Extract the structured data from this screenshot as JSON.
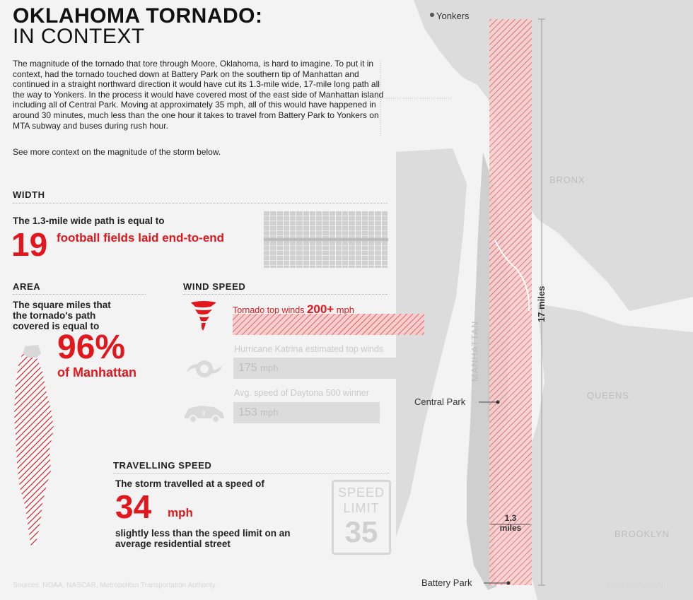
{
  "header": {
    "title_line1": "OKLAHOMA TORNADO:",
    "title_line2": "IN CONTEXT"
  },
  "intro": {
    "paragraph": "The magnitude of the tornado that tore through Moore, Oklahoma, is hard to imagine. To put it in context, had the tornado touched down at Battery Park on the southern tip of Manhattan and continued in a straight northward direction it would have cut its 1.3-mile wide, 17-mile long path all the way to Yonkers. In the process it would have covered most of the east side of Manhattan island including all of Central Park. Moving at approximately 35 mph, all of this would have happened in around 30 minutes, much less than the one hour it takes to travel from Battery Park to Yonkers on MTA subway and buses during rush hour.",
    "see_more": "See more context on the magnitude of the storm below."
  },
  "width_section": {
    "heading": "WIDTH",
    "text": "The 1.3-mile wide path is equal to",
    "number": "19",
    "unit_text": "football fields laid end-to-end",
    "field_count": 19
  },
  "area_section": {
    "heading": "AREA",
    "text_line1": "The square miles that",
    "text_line2": "the tornado's path",
    "text_line3": "covered is equal to",
    "percent": "96%",
    "of_text": "of Manhattan"
  },
  "wind_section": {
    "heading": "WIND SPEED",
    "items": [
      {
        "label": "Tornado top winds",
        "value": "200+",
        "unit": "mph",
        "speed": 200,
        "icon": "tornado-icon",
        "highlight": true
      },
      {
        "label": "Hurricane Katrina estimated top winds",
        "value": "175",
        "unit": "mph",
        "speed": 175,
        "icon": "hurricane-icon",
        "highlight": false
      },
      {
        "label": "Avg. speed of Daytona 500 winner",
        "value": "153",
        "unit": "mph",
        "speed": 153,
        "icon": "race-car-icon",
        "highlight": false
      }
    ]
  },
  "travel_section": {
    "heading": "TRAVELLING SPEED",
    "text": "The storm travelled at a speed of",
    "number": "34",
    "unit": "mph",
    "caption_line1": "slightly less than the speed limit on an",
    "caption_line2": "average residential street",
    "sign_line1": "SPEED",
    "sign_line2": "LIMIT",
    "sign_number": "35"
  },
  "map": {
    "yonkers": "Yonkers",
    "bronx": "BRONX",
    "manhattan": "MANHATTAN",
    "queens": "QUEENS",
    "brooklyn": "BROOKLYN",
    "central_park": "Central Park",
    "battery_park": "Battery Park",
    "length_label": "17 miles",
    "width_label_line1": "1.3",
    "width_label_line2": "miles"
  },
  "footer": {
    "sources": "Sources: NOAA, NASCAR, Metropolitan Transportation Authority",
    "credit": "Bryan Pasky/CNN"
  },
  "colors": {
    "accent_red": "#e2161d",
    "land": "#dcdcdc",
    "water": "#f3f3f3"
  }
}
